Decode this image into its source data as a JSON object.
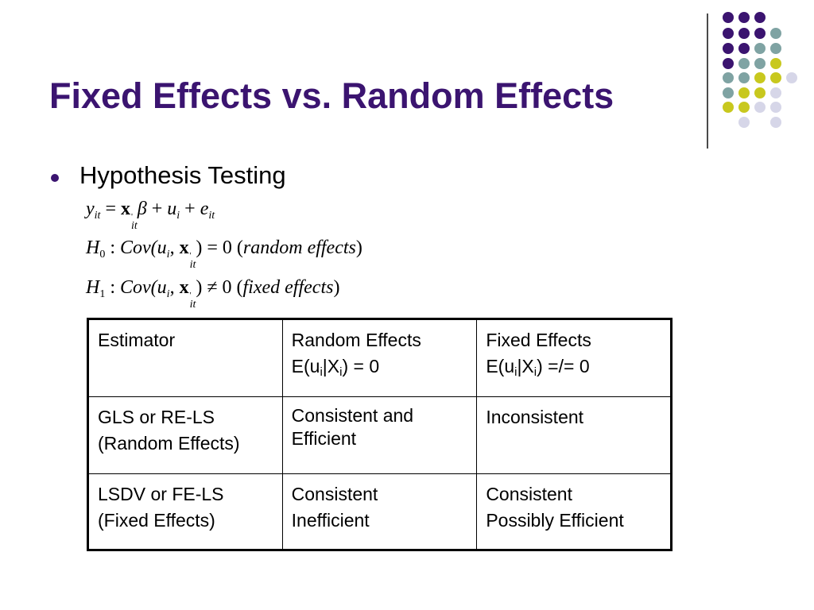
{
  "slide": {
    "title": "Fixed Effects vs. Random Effects",
    "bullet": "Hypothesis Testing",
    "colors": {
      "title": "#3b1470",
      "purple": "#3b1470",
      "teal": "#7fa3a3",
      "lime": "#c8c81e",
      "lavender": "#d6d6e8"
    }
  },
  "equations": {
    "eq1": {
      "y": "y",
      "y_sub": "it",
      "equals": "=",
      "x": "x",
      "x_sup": "'",
      "x_sub": "it",
      "beta": "β",
      "plus1": "+",
      "u": "u",
      "u_sub": "i",
      "plus2": "+",
      "e": "e",
      "e_sub": "it"
    },
    "eq2": {
      "H": "H",
      "H_sub": "0",
      "colon": ":",
      "cov": "Cov(",
      "u": "u",
      "u_sub": "i",
      "comma": ",",
      "x": "x",
      "x_sup": "'",
      "x_sub": "it",
      "close": ")",
      "rel": "=",
      "zero": "0",
      "note_open": "(",
      "note": "random effects",
      "note_close": ")"
    },
    "eq3": {
      "H": "H",
      "H_sub": "1",
      "colon": ":",
      "cov": "Cov(",
      "u": "u",
      "u_sub": "i",
      "comma": ",",
      "x": "x",
      "x_sup": "'",
      "x_sub": "it",
      "close": ")",
      "rel": "≠",
      "zero": "0",
      "note_open": "(",
      "note": "fixed effects",
      "note_close": ")"
    }
  },
  "table": {
    "header": {
      "col1": "Estimator",
      "col2": {
        "line1": "Random Effects",
        "cond_pre": "E(u",
        "cond_sub1": "i",
        "cond_mid": "|X",
        "cond_sub2": "i",
        "cond_post": ") = 0"
      },
      "col3": {
        "line1": "Fixed Effects",
        "cond_pre": "E(u",
        "cond_sub1": "i",
        "cond_mid": "|X",
        "cond_sub2": "i",
        "cond_post": ") =/= 0"
      }
    },
    "rows": [
      {
        "estimator_line1": "GLS or RE-LS",
        "estimator_line2": "(Random Effects)",
        "random": "Consistent and Efficient",
        "fixed": "Inconsistent"
      },
      {
        "estimator_line1": "LSDV or FE-LS",
        "estimator_line2": "(Fixed Effects)",
        "random_line1": "Consistent",
        "random_line2": "Inefficient",
        "fixed_line1": "Consistent",
        "fixed_line2": "Possibly Efficient"
      }
    ]
  }
}
